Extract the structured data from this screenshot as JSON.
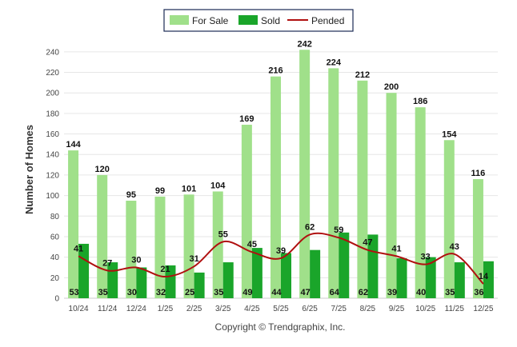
{
  "chart_data": {
    "type": "bar",
    "categories": [
      "10/24",
      "11/24",
      "12/24",
      "1/25",
      "2/25",
      "3/25",
      "4/25",
      "5/25",
      "6/25",
      "7/25",
      "8/25",
      "9/25",
      "10/25",
      "11/25",
      "12/25"
    ],
    "series": [
      {
        "name": "For Sale",
        "type": "bar",
        "color": "#a0e08a",
        "values": [
          144,
          120,
          95,
          99,
          101,
          104,
          169,
          216,
          242,
          224,
          212,
          200,
          186,
          154,
          116
        ]
      },
      {
        "name": "Sold",
        "type": "bar",
        "color": "#1aa52a",
        "values": [
          53,
          35,
          30,
          32,
          25,
          35,
          49,
          44,
          47,
          64,
          62,
          39,
          40,
          35,
          36
        ]
      },
      {
        "name": "Pended",
        "type": "line",
        "color": "#b01010",
        "values": [
          41,
          27,
          30,
          21,
          31,
          55,
          45,
          39,
          62,
          59,
          47,
          41,
          33,
          43,
          14
        ]
      }
    ],
    "ylabel": "Number of Homes",
    "ylim": [
      0,
      250
    ],
    "yticks": [
      0,
      20,
      40,
      60,
      80,
      100,
      120,
      140,
      160,
      180,
      200,
      220,
      240
    ],
    "grid": true,
    "legend_position": "top-center",
    "credit": "Copyright © Trendgraphix, Inc."
  }
}
